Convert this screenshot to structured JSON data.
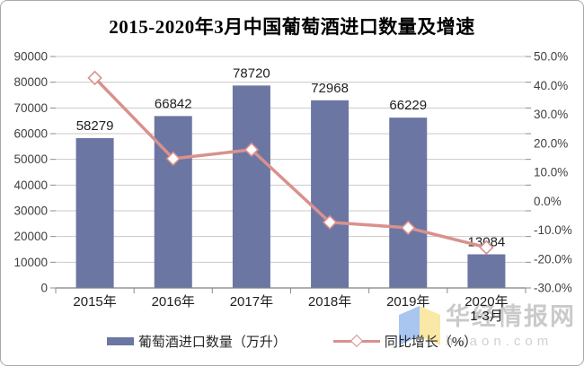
{
  "title": "2015-2020年3月中国葡萄酒进口数量及增速",
  "legend": [
    {
      "label": "葡萄酒进口数量（万升）",
      "type": "bar"
    },
    {
      "label": "同比增长（%）",
      "type": "line"
    }
  ],
  "watermark": {
    "brand": "华经情报网",
    "url": "huaon.com"
  },
  "colors": {
    "bar": "#6B76A3",
    "line": "#D9918E",
    "marker_fill": "#FFFFFF",
    "grid": "#C9C9C9",
    "axis": "#808080",
    "tick": "#8C8C8C",
    "axis_text": "#404040",
    "label_text": "#1F1F1F",
    "watermark_text": "#AFAFAF",
    "watermark_url": "#C6C6C6",
    "logo_blue": "#A8C6F0",
    "logo_yellow": "#FAE8A6"
  },
  "chart_data": {
    "type": "bar",
    "categories": [
      "2015年",
      "2016年",
      "2017年",
      "2018年",
      "2019年",
      "2020年\n1-3月"
    ],
    "series": [
      {
        "name": "葡萄酒进口数量（万升）",
        "type": "bar",
        "axis": "left",
        "values": [
          58279,
          66842,
          78720,
          72968,
          66229,
          13084
        ]
      },
      {
        "name": "同比增长（%）",
        "type": "line",
        "axis": "right",
        "values": [
          42.6,
          14.7,
          17.8,
          -7.3,
          -9.2,
          -16.0
        ]
      }
    ],
    "left_axis": {
      "min": 0,
      "max": 90000,
      "step": 10000,
      "ticks": [
        "0",
        "10000",
        "20000",
        "30000",
        "40000",
        "50000",
        "60000",
        "70000",
        "80000",
        "90000"
      ]
    },
    "right_axis": {
      "min": -30,
      "max": 50,
      "step": 10,
      "ticks": [
        "-30.0%",
        "-20.0%",
        "-10.0%",
        "0.0%",
        "10.0%",
        "20.0%",
        "30.0%",
        "40.0%",
        "50.0%"
      ]
    },
    "grid": true,
    "legend_position": "bottom"
  }
}
